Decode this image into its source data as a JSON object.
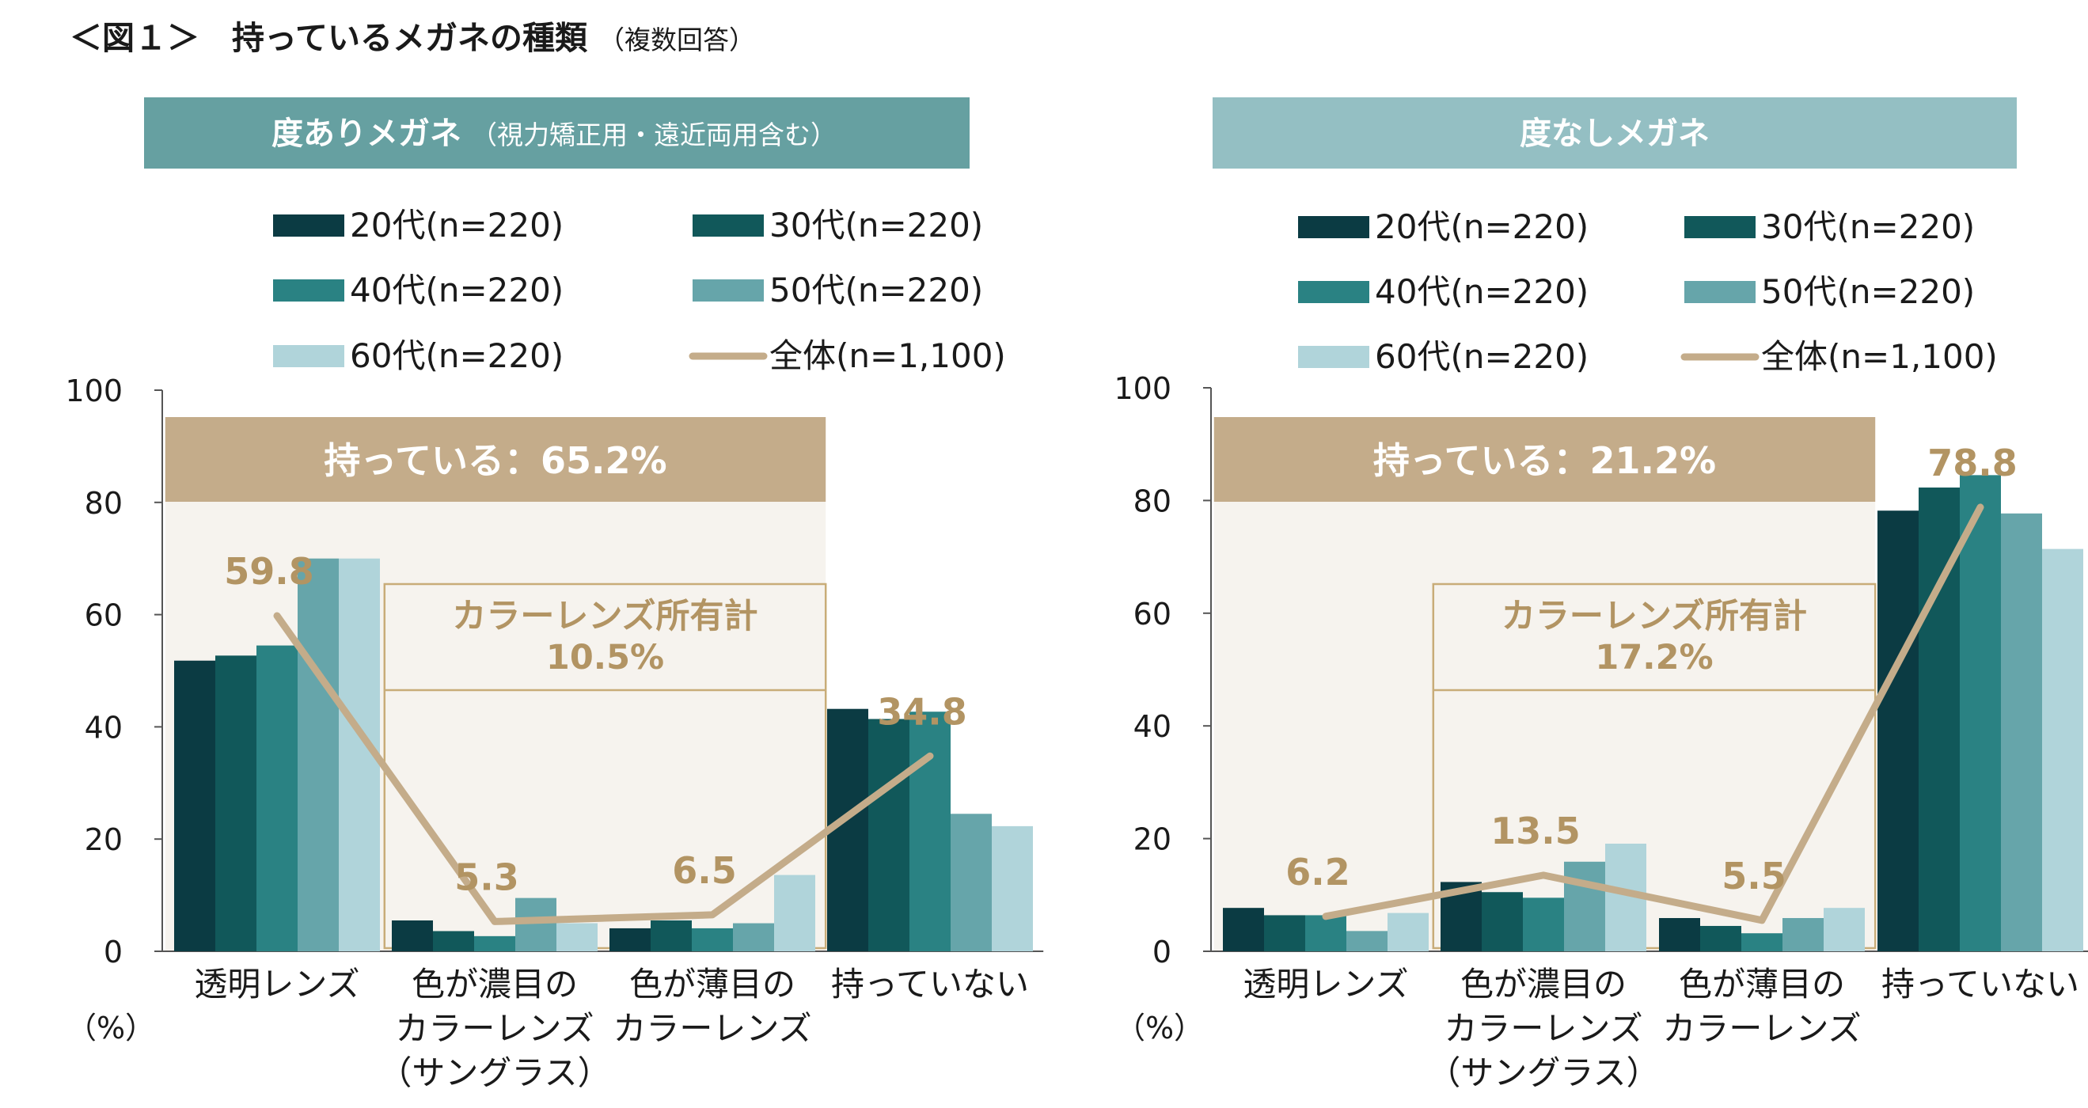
{
  "figure": {
    "title": "＜図１＞　持っているメガネの種類",
    "title_note": "（複数回答）"
  },
  "chart_data": [
    {
      "type": "bar",
      "panel_title": "度ありメガネ",
      "panel_note": "（視力矯正用・遠近両用含む）",
      "categories": [
        "透明レンズ",
        "色が濃目のカラーレンズ（サングラス）",
        "色が薄目のカラーレンズ",
        "持っていない"
      ],
      "category_lines": [
        [
          "透明レンズ"
        ],
        [
          "色が濃目の",
          "カラーレンズ",
          "（サングラス）"
        ],
        [
          "色が薄目の",
          "カラーレンズ"
        ],
        [
          "持っていない"
        ]
      ],
      "series": [
        {
          "name": "20代(n=220)",
          "color": "#0b3b43",
          "values": [
            51.8,
            5.5,
            4.1,
            43.2
          ]
        },
        {
          "name": "30代(n=220)",
          "color": "#11585a",
          "values": [
            52.7,
            3.6,
            5.5,
            41.4
          ]
        },
        {
          "name": "40代(n=220)",
          "color": "#2a8283",
          "values": [
            54.5,
            2.7,
            4.1,
            42.7
          ]
        },
        {
          "name": "50代(n=220)",
          "color": "#66a5aa",
          "values": [
            70.0,
            9.5,
            5.0,
            24.5
          ]
        },
        {
          "name": "60代(n=220)",
          "color": "#b0d4da",
          "values": [
            70.0,
            5.0,
            13.6,
            22.3
          ]
        }
      ],
      "total": {
        "name": "全体(n=1,100)",
        "color": "#c4ac8a",
        "values": [
          59.8,
          5.3,
          6.5,
          34.8
        ],
        "labels": [
          "59.8",
          "5.3",
          "6.5",
          "34.8"
        ]
      },
      "yticks": [
        "0",
        "20",
        "40",
        "60",
        "80",
        "100"
      ],
      "ylim": [
        0,
        100
      ],
      "unit_label": "（%）",
      "owned_label": "持っている：65.2%",
      "color_lens_label_1": "カラーレンズ所有計",
      "color_lens_label_2": "10.5%"
    },
    {
      "type": "bar",
      "panel_title": "度なしメガネ",
      "panel_note": "",
      "categories": [
        "透明レンズ",
        "色が濃目のカラーレンズ（サングラス）",
        "色が薄目のカラーレンズ",
        "持っていない"
      ],
      "category_lines": [
        [
          "透明レンズ"
        ],
        [
          "色が濃目の",
          "カラーレンズ",
          "（サングラス）"
        ],
        [
          "色が薄目の",
          "カラーレンズ"
        ],
        [
          "持っていない"
        ]
      ],
      "series": [
        {
          "name": "20代(n=220)",
          "color": "#0b3b43",
          "values": [
            7.7,
            12.3,
            5.9,
            78.2
          ]
        },
        {
          "name": "30代(n=220)",
          "color": "#11585a",
          "values": [
            6.4,
            10.5,
            4.5,
            82.3
          ]
        },
        {
          "name": "40代(n=220)",
          "color": "#2a8283",
          "values": [
            6.4,
            9.5,
            3.2,
            84.5
          ]
        },
        {
          "name": "50代(n=220)",
          "color": "#66a5aa",
          "values": [
            3.6,
            15.9,
            5.9,
            77.7
          ]
        },
        {
          "name": "60代(n=220)",
          "color": "#b0d4da",
          "values": [
            6.8,
            19.1,
            7.7,
            71.4
          ]
        }
      ],
      "total": {
        "name": "全体(n=1,100)",
        "color": "#c4ac8a",
        "values": [
          6.2,
          13.5,
          5.5,
          78.8
        ],
        "labels": [
          "6.2",
          "13.5",
          "5.5",
          "78.8"
        ]
      },
      "yticks": [
        "0",
        "20",
        "40",
        "60",
        "80",
        "100"
      ],
      "ylim": [
        0,
        100
      ],
      "unit_label": "（%）",
      "owned_label": "持っている：21.2%",
      "color_lens_label_1": "カラーレンズ所有計",
      "color_lens_label_2": "17.2%"
    }
  ]
}
